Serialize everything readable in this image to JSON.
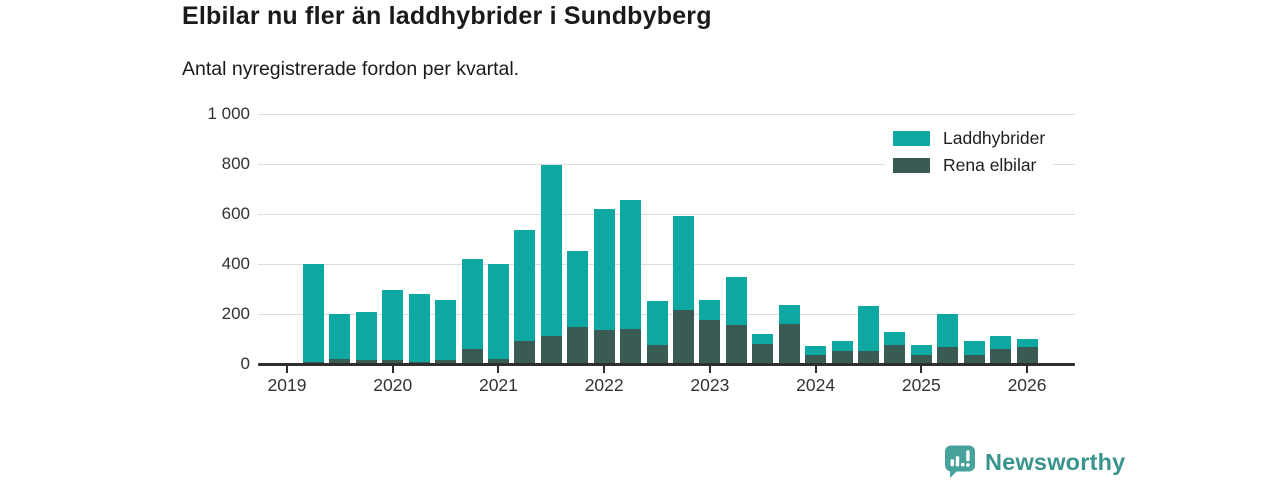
{
  "header": {
    "title": "Elbilar nu fler än laddhybrider i Sundbyberg",
    "subtitle": "Antal nyregistrerade fordon per kvartal."
  },
  "chart_data": {
    "type": "bar",
    "stacked": true,
    "x": [
      "2019 K2",
      "2019 K3",
      "2019 K4",
      "2020 K1",
      "2020 K2",
      "2020 K3",
      "2020 K4",
      "2021 K1",
      "2021 K2",
      "2021 K3",
      "2021 K4",
      "2022 K1",
      "2022 K2",
      "2022 K3",
      "2022 K4",
      "2023 K1",
      "2023 K2",
      "2023 K3",
      "2023 K4",
      "2024 K1",
      "2024 K2",
      "2024 K3",
      "2024 K4",
      "2025 K1",
      "2025 K2",
      "2025 K3",
      "2025 K4",
      "2026 K1"
    ],
    "series": [
      {
        "name": "Laddhybrider",
        "color": "#0ca8a1",
        "values": [
          395,
          180,
          190,
          280,
          275,
          240,
          360,
          380,
          445,
          685,
          305,
          485,
          515,
          175,
          375,
          80,
          190,
          40,
          75,
          35,
          40,
          180,
          50,
          40,
          135,
          55,
          50,
          35
        ]
      },
      {
        "name": "Rena elbilar",
        "color": "#3a5b54",
        "values": [
          5,
          20,
          15,
          15,
          5,
          15,
          60,
          20,
          90,
          110,
          145,
          135,
          140,
          75,
          215,
          175,
          155,
          80,
          160,
          35,
          50,
          50,
          75,
          35,
          65,
          35,
          60,
          65
        ]
      }
    ],
    "title": "Elbilar nu fler än laddhybrider i Sundbyberg",
    "xlabel": "",
    "ylabel": "",
    "ylim": [
      0,
      1000
    ],
    "ytick_values": [
      0,
      200,
      400,
      600,
      800,
      1000
    ],
    "ytick_labels": [
      "0",
      "200",
      "400",
      "600",
      "800",
      "1 000"
    ],
    "xtick_labels": [
      "2019",
      "2020",
      "2021",
      "2022",
      "2023",
      "2024",
      "2025",
      "2026"
    ],
    "grid": true,
    "legend_position": "top-right"
  },
  "colors": {
    "axis_line": "#2e2e2e",
    "gridline": "#dcdcdc",
    "brand_teal": "#47a29b",
    "brand_text": "#3a948e"
  },
  "footer": {
    "brand": "Newsworthy"
  }
}
